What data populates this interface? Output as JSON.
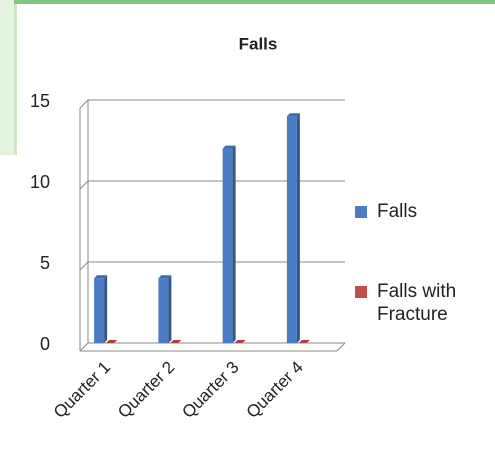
{
  "chart_data": {
    "type": "bar",
    "title": "Falls",
    "categories": [
      "Quarter 1",
      "Quarter 2",
      "Quarter 3",
      "Quarter 4"
    ],
    "series": [
      {
        "name": "Falls",
        "color": "#4a7cc4",
        "values": [
          4,
          4,
          12,
          14
        ]
      },
      {
        "name": "Falls with Fracture",
        "color": "#c0504d",
        "values": [
          0,
          0,
          0,
          0
        ]
      }
    ],
    "ylim": [
      0,
      15
    ],
    "yticks": [
      0,
      5,
      10,
      15
    ],
    "grid": true,
    "legend": "right"
  }
}
